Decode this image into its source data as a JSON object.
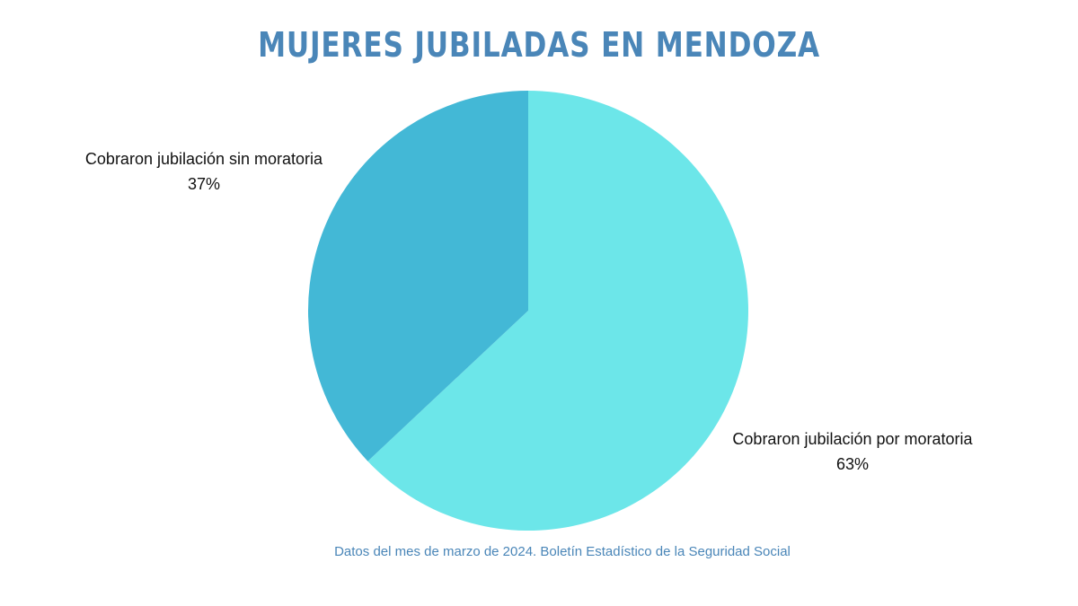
{
  "chart_data": {
    "type": "pie",
    "title": "MUJERES JUBILADAS EN MENDOZA",
    "source_note": "Datos del mes de marzo de 2024. Boletín Estadístico de la Seguridad Social",
    "slices": [
      {
        "label": "Cobraron jubilación por moratoria",
        "value": 63,
        "value_label": "63%",
        "color": "#6ce6e9"
      },
      {
        "label": "Cobraron jubilación sin moratoria",
        "value": 37,
        "value_label": "37%",
        "color": "#43b8d6"
      }
    ],
    "start_angle": "top (12 o'clock)",
    "direction": "clockwise",
    "legend": "none (direct labels)"
  }
}
